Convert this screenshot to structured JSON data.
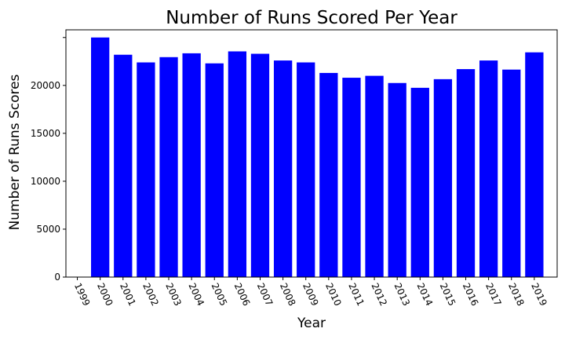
{
  "chart_data": {
    "type": "bar",
    "title": "Number of Runs Scored Per Year",
    "xlabel": "Year",
    "ylabel": "Number of Runs Scores",
    "x_tick_labels": [
      "1999",
      "2000",
      "2001",
      "2002",
      "2003",
      "2004",
      "2005",
      "2006",
      "2007",
      "2008",
      "2009",
      "2010",
      "2011",
      "2012",
      "2013",
      "2014",
      "2015",
      "2016",
      "2017",
      "2018",
      "2019"
    ],
    "categories": [
      "2000",
      "2001",
      "2002",
      "2003",
      "2004",
      "2005",
      "2006",
      "2007",
      "2008",
      "2009",
      "2010",
      "2011",
      "2012",
      "2013",
      "2014",
      "2015",
      "2016",
      "2017",
      "2018",
      "2019"
    ],
    "values": [
      25000,
      23200,
      22400,
      22950,
      23350,
      22300,
      23550,
      23300,
      22600,
      22400,
      21300,
      20800,
      21000,
      20250,
      19750,
      20650,
      21700,
      22600,
      21650,
      23450
    ],
    "y_ticks": [
      0,
      5000,
      10000,
      15000,
      20000
    ],
    "ylim": [
      0,
      25800
    ],
    "xlim": [
      1998.5,
      2020
    ],
    "bar_color": "#0000ff",
    "grid": false,
    "legend": "none"
  }
}
